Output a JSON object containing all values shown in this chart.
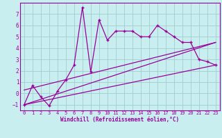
{
  "xlabel": "Windchill (Refroidissement éolien,°C)",
  "bg_color": "#c8eef0",
  "line_color": "#990099",
  "grid_color": "#a0ccd0",
  "xlim": [
    -0.5,
    23.5
  ],
  "ylim": [
    -1.5,
    8.0
  ],
  "yticks": [
    -1,
    0,
    1,
    2,
    3,
    4,
    5,
    6,
    7
  ],
  "xticks": [
    0,
    1,
    2,
    3,
    4,
    5,
    6,
    7,
    8,
    9,
    10,
    11,
    12,
    13,
    14,
    15,
    16,
    17,
    18,
    19,
    20,
    21,
    22,
    23
  ],
  "main_x": [
    0,
    1,
    2,
    3,
    4,
    5,
    6,
    7,
    8,
    9,
    10,
    11,
    12,
    13,
    14,
    15,
    16,
    17,
    18,
    19,
    20,
    21,
    22,
    23
  ],
  "main_y": [
    -1.0,
    0.7,
    -0.3,
    -1.1,
    0.2,
    1.2,
    2.5,
    7.6,
    1.9,
    6.5,
    4.7,
    5.5,
    5.5,
    5.5,
    5.0,
    5.0,
    6.0,
    5.5,
    5.0,
    4.5,
    4.5,
    3.0,
    2.8,
    2.5
  ],
  "line1_x": [
    0,
    23
  ],
  "line1_y": [
    -1.0,
    2.5
  ],
  "line2_x": [
    0,
    23
  ],
  "line2_y": [
    -1.0,
    4.5
  ],
  "line3_x": [
    0,
    23
  ],
  "line3_y": [
    0.3,
    4.5
  ]
}
